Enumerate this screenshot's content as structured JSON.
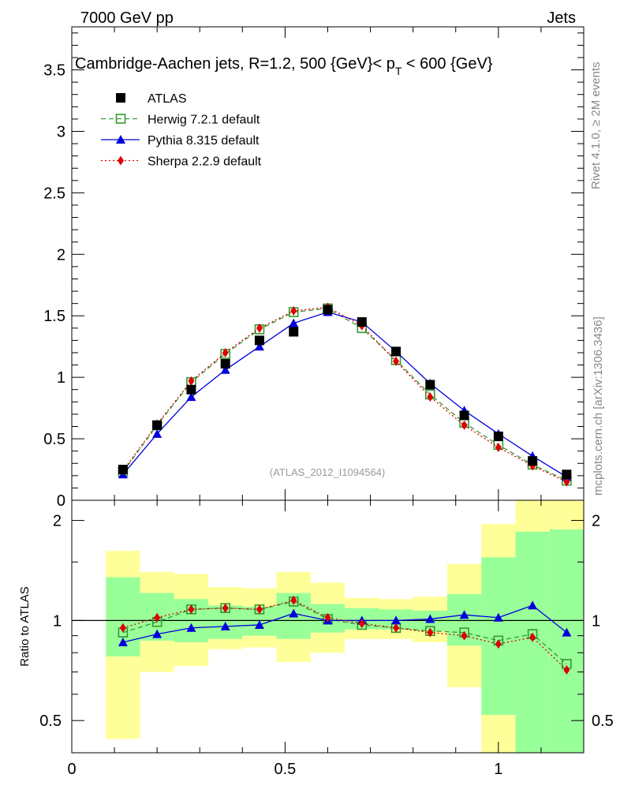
{
  "header": {
    "energy_label": "7000 GeV pp",
    "category_label": "Jets",
    "rivet_label": "Rivet 4.1.0, ≥ 2M events",
    "mcplots_label": "mcplots.cern.ch [arXiv:1306.3436]",
    "analysis_id": "(ATLAS_2012_I1094564)"
  },
  "colors": {
    "atlas": "#000000",
    "herwig": "#339933",
    "pythia": "#0000dd",
    "sherpa": "#dd0000",
    "band_inner": "#99ff99",
    "band_outer": "#ffff99"
  },
  "chart_data": [
    {
      "type": "scatter",
      "panel": "main",
      "title_prefix": "Cambridge-Aachen jets, R=1.2,  500 {GeV}< p",
      "title_sub": "T",
      "title_suffix": " < 600 {GeV}",
      "xlabel": "",
      "ylabel": "",
      "xlim": [
        0,
        1.2
      ],
      "ylim": [
        0,
        3.85
      ],
      "yticks": [
        0,
        0.5,
        1,
        1.5,
        2,
        2.5,
        3,
        3.5
      ],
      "ytick_labels": [
        "0",
        "0.5",
        "1",
        "1.5",
        "2",
        "2.5",
        "3",
        "3.5"
      ],
      "x": [
        0.12,
        0.2,
        0.28,
        0.36,
        0.44,
        0.52,
        0.6,
        0.68,
        0.76,
        0.84,
        0.92,
        1.0,
        1.08,
        1.16
      ],
      "legend_position": "top-left",
      "series": [
        {
          "name": "ATLAS",
          "key": "atlas",
          "marker": "square",
          "values": [
            0.25,
            0.61,
            0.9,
            1.11,
            1.3,
            1.37,
            1.55,
            1.45,
            1.21,
            0.94,
            0.69,
            0.52,
            0.32,
            0.21
          ]
        },
        {
          "name": "Herwig 7.2.1 default",
          "key": "herwig",
          "marker": "open-square",
          "line": "dashed",
          "values": [
            0.23,
            0.61,
            0.96,
            1.19,
            1.39,
            1.53,
            1.56,
            1.4,
            1.14,
            0.86,
            0.63,
            0.45,
            0.29,
            0.16
          ]
        },
        {
          "name": "Pythia 8.315 default",
          "key": "pythia",
          "marker": "triangle",
          "line": "solid",
          "values": [
            0.21,
            0.54,
            0.84,
            1.06,
            1.25,
            1.44,
            1.53,
            1.45,
            1.21,
            0.95,
            0.73,
            0.54,
            0.36,
            0.19
          ]
        },
        {
          "name": "Sherpa 2.2.9 default",
          "key": "sherpa",
          "marker": "diamond",
          "line": "dotted",
          "values": [
            0.24,
            0.62,
            0.97,
            1.2,
            1.4,
            1.54,
            1.57,
            1.42,
            1.13,
            0.84,
            0.61,
            0.43,
            0.28,
            0.15
          ]
        }
      ]
    },
    {
      "type": "line",
      "panel": "ratio",
      "ylabel": "Ratio to ATLAS",
      "xlim": [
        0,
        1.2
      ],
      "ylim": [
        0.4,
        2.3
      ],
      "yticks": [
        0.5,
        1,
        2
      ],
      "ytick_labels": [
        "0.5",
        "1",
        "2"
      ],
      "xticks": [
        0,
        0.5,
        1
      ],
      "xtick_labels": [
        "0",
        "0.5",
        "1"
      ],
      "bin_edges": [
        0.08,
        0.16,
        0.24,
        0.32,
        0.4,
        0.48,
        0.56,
        0.64,
        0.72,
        0.8,
        0.88,
        0.96,
        1.04,
        1.12,
        1.2
      ],
      "band_inner_low": [
        0.78,
        0.87,
        0.86,
        0.88,
        0.9,
        0.88,
        0.92,
        0.94,
        0.94,
        0.93,
        0.84,
        0.52,
        0.3,
        0.3
      ],
      "band_inner_high": [
        1.35,
        1.21,
        1.16,
        1.11,
        1.1,
        1.21,
        1.12,
        1.09,
        1.08,
        1.07,
        1.2,
        1.55,
        1.85,
        1.88
      ],
      "band_outer_low": [
        0.44,
        0.7,
        0.73,
        0.82,
        0.83,
        0.75,
        0.8,
        0.88,
        0.88,
        0.86,
        0.63,
        0.3,
        0.3,
        0.3
      ],
      "band_outer_high": [
        1.62,
        1.4,
        1.38,
        1.26,
        1.25,
        1.4,
        1.3,
        1.17,
        1.16,
        1.18,
        1.48,
        1.95,
        2.45,
        2.45
      ],
      "reference": 1,
      "series": [
        {
          "name": "Herwig 7.2.1 default",
          "key": "herwig",
          "marker": "open-square",
          "line": "dashed",
          "values": [
            0.92,
            0.99,
            1.08,
            1.09,
            1.08,
            1.14,
            1.01,
            0.97,
            0.95,
            0.93,
            0.92,
            0.87,
            0.91,
            0.74
          ]
        },
        {
          "name": "Pythia 8.315 default",
          "key": "pythia",
          "marker": "triangle",
          "line": "solid",
          "values": [
            0.86,
            0.91,
            0.95,
            0.96,
            0.97,
            1.05,
            1.0,
            1.0,
            1.0,
            1.01,
            1.04,
            1.02,
            1.11,
            0.92
          ]
        },
        {
          "name": "Sherpa 2.2.9 default",
          "key": "sherpa",
          "marker": "diamond",
          "line": "dotted",
          "values": [
            0.95,
            1.02,
            1.08,
            1.09,
            1.08,
            1.15,
            1.02,
            0.98,
            0.95,
            0.92,
            0.9,
            0.85,
            0.89,
            0.71
          ]
        }
      ]
    }
  ]
}
